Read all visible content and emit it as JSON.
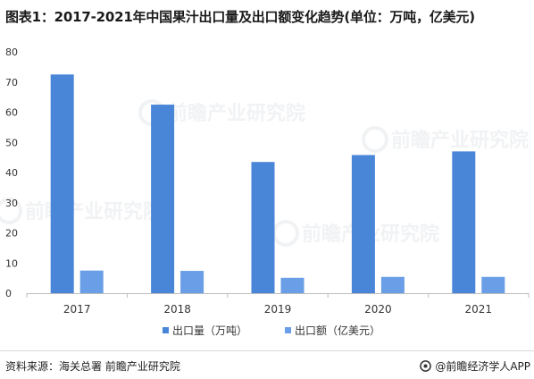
{
  "title": "图表1：2017-2021年中国果汁出口量及出口额变化趋势(单位：万吨，亿美元)",
  "chart_data": {
    "type": "bar",
    "categories": [
      "2017",
      "2018",
      "2019",
      "2020",
      "2021"
    ],
    "series": [
      {
        "name": "出口量（万吨）",
        "values": [
          72.5,
          62.5,
          43.5,
          45.8,
          47
        ],
        "color": "#4a86d8"
      },
      {
        "name": "出口额（亿美元）",
        "values": [
          7.5,
          7.4,
          5.1,
          5.4,
          5.4
        ],
        "color": "#6a9ee6"
      }
    ],
    "ylim": [
      0,
      80
    ],
    "yticks": [
      "0",
      "10",
      "20",
      "30",
      "40",
      "50",
      "60",
      "70",
      "80"
    ],
    "grid": false,
    "legend_position": "bottom-center",
    "watermark": "前瞻产业研究院"
  },
  "footer": {
    "source": "资料来源：海关总署 前瞻产业研究院",
    "brand": "@前瞻经济学人APP"
  }
}
